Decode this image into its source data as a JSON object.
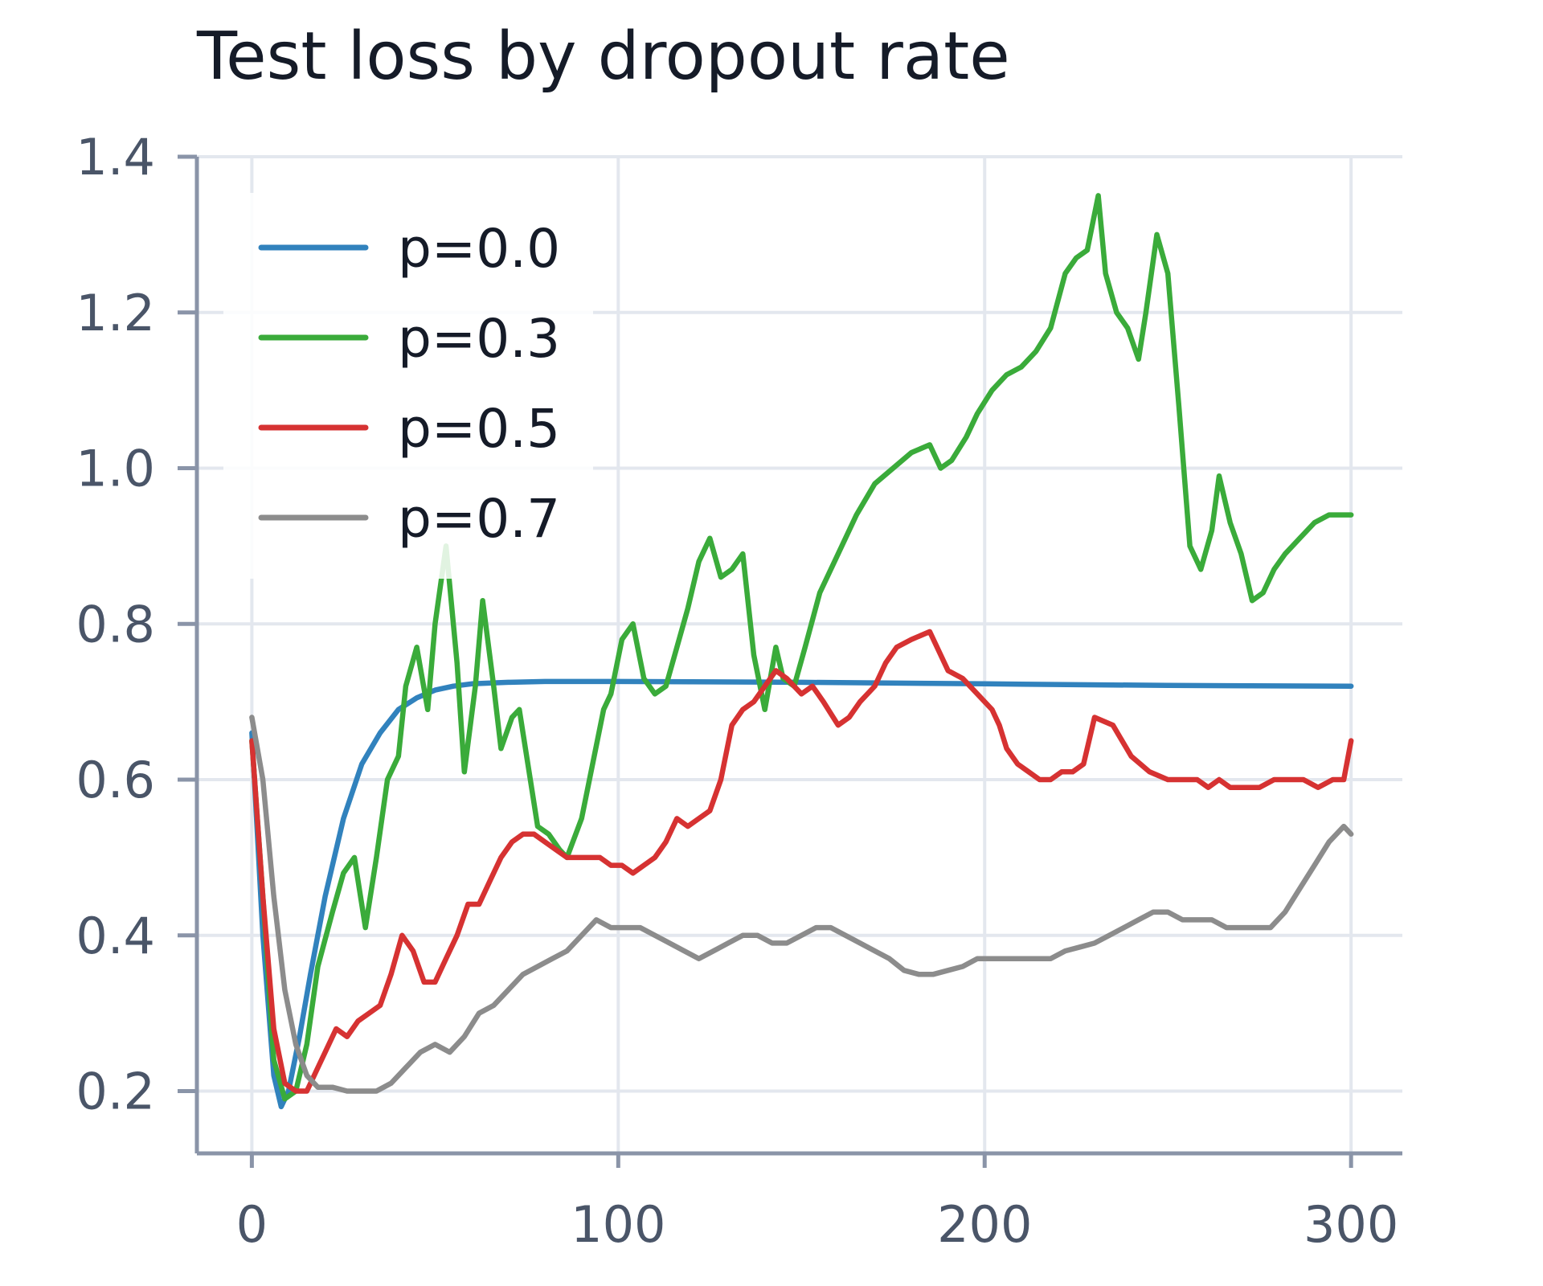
{
  "chart_data": {
    "type": "line",
    "title": "Test loss by dropout rate",
    "xlabel": "",
    "ylabel": "",
    "xlim": [
      -15,
      314
    ],
    "ylim": [
      0.12,
      1.4
    ],
    "xticks": [
      0,
      100,
      200,
      300
    ],
    "xtick_labels": [
      "0",
      "100",
      "200",
      "300"
    ],
    "yticks": [
      0.2,
      0.4,
      0.6,
      0.8,
      1.0,
      1.2,
      1.4
    ],
    "ytick_labels": [
      "0.2",
      "0.4",
      "0.6",
      "0.8",
      "1.0",
      "1.2",
      "1.4"
    ],
    "grid": true,
    "legend": "top-left",
    "series": [
      {
        "name": "p=0.0",
        "color": "#3182bd",
        "x": [
          0,
          3,
          6,
          8,
          10,
          13,
          16,
          20,
          25,
          30,
          35,
          40,
          45,
          50,
          55,
          60,
          70,
          80,
          100,
          150,
          200,
          250,
          300
        ],
        "y": [
          0.66,
          0.4,
          0.22,
          0.18,
          0.2,
          0.27,
          0.35,
          0.45,
          0.55,
          0.62,
          0.66,
          0.69,
          0.705,
          0.715,
          0.72,
          0.723,
          0.725,
          0.726,
          0.726,
          0.725,
          0.723,
          0.721,
          0.72
        ]
      },
      {
        "name": "p=0.3",
        "color": "#3aab3a",
        "x": [
          0,
          3,
          6,
          9,
          12,
          15,
          18,
          22,
          25,
          28,
          31,
          34,
          37,
          40,
          42,
          45,
          48,
          50,
          53,
          56,
          58,
          61,
          63,
          66,
          68,
          71,
          73,
          76,
          78,
          81,
          84,
          86,
          90,
          93,
          96,
          98,
          101,
          104,
          107,
          110,
          113,
          116,
          119,
          122,
          125,
          128,
          131,
          134,
          137,
          140,
          143,
          145,
          148,
          151,
          155,
          160,
          165,
          170,
          175,
          180,
          185,
          188,
          191,
          195,
          198,
          202,
          206,
          210,
          214,
          218,
          222,
          225,
          228,
          231,
          233,
          236,
          239,
          242,
          244,
          247,
          250,
          253,
          256,
          259,
          262,
          264,
          267,
          270,
          273,
          276,
          279,
          282,
          286,
          290,
          294,
          297,
          300
        ],
        "y": [
          0.65,
          0.45,
          0.24,
          0.19,
          0.2,
          0.26,
          0.36,
          0.43,
          0.48,
          0.5,
          0.41,
          0.5,
          0.6,
          0.63,
          0.72,
          0.77,
          0.69,
          0.8,
          0.9,
          0.75,
          0.61,
          0.72,
          0.83,
          0.72,
          0.64,
          0.68,
          0.69,
          0.6,
          0.54,
          0.53,
          0.51,
          0.5,
          0.55,
          0.62,
          0.69,
          0.71,
          0.78,
          0.8,
          0.73,
          0.71,
          0.72,
          0.77,
          0.82,
          0.88,
          0.91,
          0.86,
          0.87,
          0.89,
          0.76,
          0.69,
          0.77,
          0.73,
          0.72,
          0.77,
          0.84,
          0.89,
          0.94,
          0.98,
          1.0,
          1.02,
          1.03,
          1.0,
          1.01,
          1.04,
          1.07,
          1.1,
          1.12,
          1.13,
          1.15,
          1.18,
          1.25,
          1.27,
          1.28,
          1.35,
          1.25,
          1.2,
          1.18,
          1.14,
          1.2,
          1.3,
          1.25,
          1.08,
          0.9,
          0.87,
          0.92,
          0.99,
          0.93,
          0.89,
          0.83,
          0.84,
          0.87,
          0.89,
          0.91,
          0.93,
          0.94,
          0.94,
          0.94
        ]
      },
      {
        "name": "p=0.5",
        "color": "#d63232",
        "x": [
          0,
          3,
          6,
          9,
          12,
          15,
          18,
          20,
          23,
          26,
          29,
          32,
          35,
          38,
          41,
          44,
          47,
          50,
          53,
          56,
          59,
          62,
          65,
          68,
          71,
          74,
          77,
          80,
          83,
          86,
          89,
          92,
          95,
          98,
          101,
          104,
          107,
          110,
          113,
          116,
          119,
          122,
          125,
          128,
          131,
          134,
          137,
          140,
          143,
          146,
          150,
          153,
          156,
          160,
          163,
          166,
          170,
          173,
          176,
          180,
          185,
          190,
          194,
          198,
          202,
          204,
          206,
          209,
          212,
          215,
          218,
          221,
          224,
          227,
          230,
          235,
          240,
          245,
          250,
          255,
          258,
          261,
          264,
          267,
          271,
          275,
          279,
          283,
          287,
          291,
          295,
          298,
          300
        ],
        "y": [
          0.65,
          0.45,
          0.28,
          0.21,
          0.2,
          0.2,
          0.23,
          0.25,
          0.28,
          0.27,
          0.29,
          0.3,
          0.31,
          0.35,
          0.4,
          0.38,
          0.34,
          0.34,
          0.37,
          0.4,
          0.44,
          0.44,
          0.47,
          0.5,
          0.52,
          0.53,
          0.53,
          0.52,
          0.51,
          0.5,
          0.5,
          0.5,
          0.5,
          0.49,
          0.49,
          0.48,
          0.49,
          0.5,
          0.52,
          0.55,
          0.54,
          0.55,
          0.56,
          0.6,
          0.67,
          0.69,
          0.7,
          0.72,
          0.74,
          0.73,
          0.71,
          0.72,
          0.7,
          0.67,
          0.68,
          0.7,
          0.72,
          0.75,
          0.77,
          0.78,
          0.79,
          0.74,
          0.73,
          0.71,
          0.69,
          0.67,
          0.64,
          0.62,
          0.61,
          0.6,
          0.6,
          0.61,
          0.61,
          0.62,
          0.68,
          0.67,
          0.63,
          0.61,
          0.6,
          0.6,
          0.6,
          0.59,
          0.6,
          0.59,
          0.59,
          0.59,
          0.6,
          0.6,
          0.6,
          0.59,
          0.6,
          0.6,
          0.65
        ]
      },
      {
        "name": "p=0.7",
        "color": "#8c8c8c",
        "x": [
          0,
          3,
          6,
          9,
          12,
          15,
          18,
          22,
          26,
          30,
          34,
          38,
          42,
          46,
          50,
          54,
          58,
          62,
          66,
          70,
          74,
          78,
          82,
          86,
          90,
          94,
          98,
          102,
          106,
          110,
          114,
          118,
          122,
          126,
          130,
          134,
          138,
          142,
          146,
          150,
          154,
          158,
          162,
          166,
          170,
          174,
          178,
          182,
          186,
          190,
          194,
          198,
          202,
          206,
          210,
          214,
          218,
          222,
          226,
          230,
          234,
          238,
          242,
          246,
          250,
          254,
          258,
          262,
          266,
          270,
          274,
          278,
          282,
          286,
          290,
          294,
          298,
          300
        ],
        "y": [
          0.68,
          0.6,
          0.45,
          0.33,
          0.26,
          0.22,
          0.205,
          0.205,
          0.2,
          0.2,
          0.2,
          0.21,
          0.23,
          0.25,
          0.26,
          0.25,
          0.27,
          0.3,
          0.31,
          0.33,
          0.35,
          0.36,
          0.37,
          0.38,
          0.4,
          0.42,
          0.41,
          0.41,
          0.41,
          0.4,
          0.39,
          0.38,
          0.37,
          0.38,
          0.39,
          0.4,
          0.4,
          0.39,
          0.39,
          0.4,
          0.41,
          0.41,
          0.4,
          0.39,
          0.38,
          0.37,
          0.355,
          0.35,
          0.35,
          0.355,
          0.36,
          0.37,
          0.37,
          0.37,
          0.37,
          0.37,
          0.37,
          0.38,
          0.385,
          0.39,
          0.4,
          0.41,
          0.42,
          0.43,
          0.43,
          0.42,
          0.42,
          0.42,
          0.41,
          0.41,
          0.41,
          0.41,
          0.43,
          0.46,
          0.49,
          0.52,
          0.54,
          0.53
        ]
      }
    ]
  }
}
